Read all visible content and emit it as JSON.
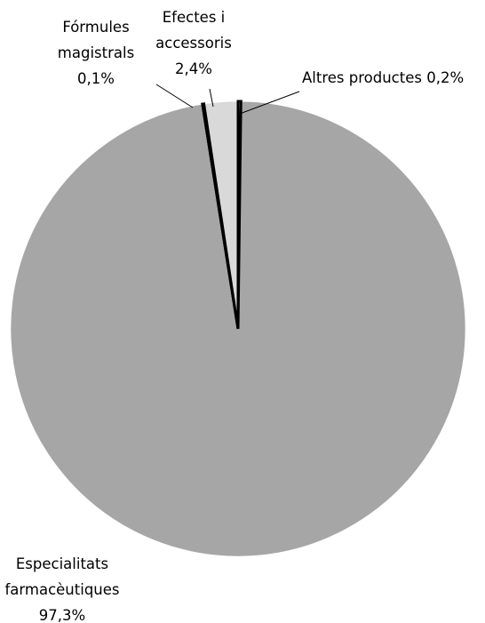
{
  "chart_data": {
    "type": "pie",
    "title": "",
    "slices": [
      {
        "label_lines": [
          "Altres productes 0,2%"
        ],
        "name": "Altres productes",
        "value": 0.2,
        "color": "#ffffff"
      },
      {
        "label_lines": [
          "Especialitats",
          "farmacèutiques",
          "97,3%"
        ],
        "name": "Especialitats farmacèutiques",
        "value": 97.3,
        "color": "#a6a6a6"
      },
      {
        "label_lines": [
          "Fórmules",
          "magistrals",
          "0,1%"
        ],
        "name": "Fórmules magistrals",
        "value": 0.1,
        "color": "#ffffff"
      },
      {
        "label_lines": [
          "Efectes i",
          "accessoris",
          "2,4%"
        ],
        "name": "Efectes i accessoris",
        "value": 2.4,
        "color": "#d9d9d9"
      }
    ]
  }
}
